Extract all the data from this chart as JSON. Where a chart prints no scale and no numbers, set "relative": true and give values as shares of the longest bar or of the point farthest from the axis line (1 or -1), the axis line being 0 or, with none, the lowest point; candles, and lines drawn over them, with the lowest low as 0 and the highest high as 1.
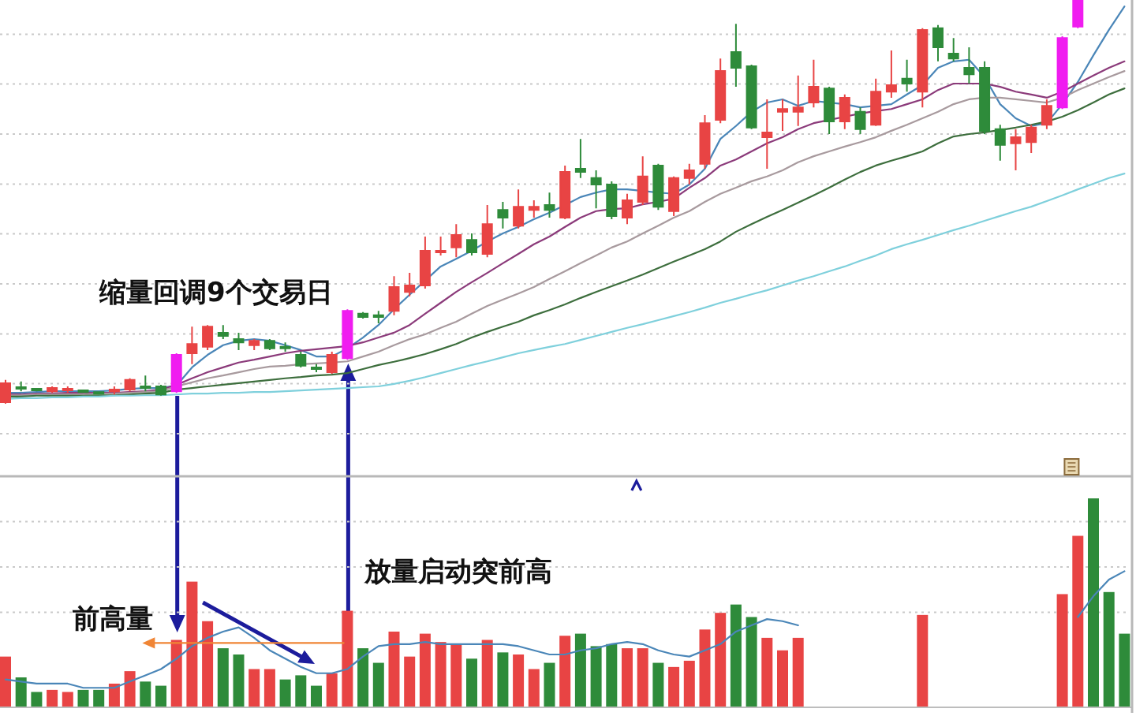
{
  "chart_data": [
    {
      "type": "candlestick",
      "relative": true,
      "grid": "y",
      "categories": [
        null,
        null,
        null,
        null,
        null,
        null,
        null,
        null,
        null,
        null,
        null,
        null,
        null,
        null,
        null,
        null,
        null,
        null,
        null,
        null,
        null,
        null,
        null,
        null,
        null,
        null,
        null,
        null,
        null,
        null,
        null,
        null,
        null,
        null,
        null,
        null,
        null,
        null,
        null,
        null,
        null,
        null,
        null,
        null,
        null,
        null,
        null,
        null,
        null,
        null,
        null,
        null,
        null,
        null,
        null,
        null,
        null,
        null,
        null,
        null,
        null,
        null,
        null,
        null,
        null,
        null,
        null,
        null,
        null,
        null,
        null,
        null,
        null
      ],
      "ohlc": [
        [
          0.004,
          0.059,
          0,
          0.051
        ],
        [
          0.041,
          0.055,
          0.031,
          0.037
        ],
        [
          0.037,
          0.039,
          0.031,
          0.033
        ],
        [
          0.031,
          0.043,
          0.027,
          0.039
        ],
        [
          0.035,
          0.043,
          0.027,
          0.037
        ],
        [
          0.033,
          0.035,
          0.027,
          0.029
        ],
        [
          0.029,
          0.031,
          0.023,
          0.025
        ],
        [
          0.031,
          0.043,
          0.023,
          0.035
        ],
        [
          0.035,
          0.063,
          0.031,
          0.059
        ],
        [
          0.043,
          0.07,
          0.031,
          0.039
        ],
        [
          0.043,
          0.047,
          0.02,
          0.023
        ],
        [
          0.031,
          0.125,
          0.027,
          0.121
        ],
        [
          0.125,
          0.191,
          0.098,
          0.148
        ],
        [
          0.141,
          0.195,
          0.133,
          0.191
        ],
        [
          0.176,
          0.195,
          0.16,
          0.168
        ],
        [
          0.16,
          0.176,
          0.133,
          0.152
        ],
        [
          0.145,
          0.16,
          0.133,
          0.156
        ],
        [
          0.156,
          0.16,
          0.133,
          0.137
        ],
        [
          0.141,
          0.152,
          0.129,
          0.137
        ],
        [
          0.121,
          0.129,
          0.09,
          0.094
        ],
        [
          0.09,
          0.098,
          0.078,
          0.086
        ],
        [
          0.078,
          0.129,
          0.074,
          0.121
        ],
        [
          0.113,
          0.234,
          0.109,
          0.23
        ],
        [
          0.223,
          0.227,
          0.211,
          0.215
        ],
        [
          0.219,
          0.23,
          0.199,
          0.215
        ],
        [
          0.23,
          0.316,
          0.219,
          0.289
        ],
        [
          0.277,
          0.324,
          0.266,
          0.293
        ],
        [
          0.293,
          0.414,
          0.285,
          0.379
        ],
        [
          0.375,
          0.414,
          0.367,
          0.379
        ],
        [
          0.387,
          0.445,
          0.363,
          0.418
        ],
        [
          0.406,
          0.422,
          0.367,
          0.375
        ],
        [
          0.371,
          0.492,
          0.363,
          0.445
        ],
        [
          0.48,
          0.5,
          0.434,
          0.461
        ],
        [
          0.441,
          0.531,
          0.434,
          0.488
        ],
        [
          0.48,
          0.504,
          0.461,
          0.488
        ],
        [
          0.492,
          0.523,
          0.461,
          0.48
        ],
        [
          0.461,
          0.59,
          0.457,
          0.574
        ],
        [
          0.582,
          0.656,
          0.559,
          0.574
        ],
        [
          0.559,
          0.578,
          0.484,
          0.543
        ],
        [
          0.543,
          0.551,
          0.457,
          0.465
        ],
        [
          0.461,
          0.52,
          0.445,
          0.504
        ],
        [
          0.5,
          0.613,
          0.492,
          0.563
        ],
        [
          0.59,
          0.594,
          0.48,
          0.488
        ],
        [
          0.477,
          0.563,
          0.465,
          0.559
        ],
        [
          0.559,
          0.594,
          0.543,
          0.578
        ],
        [
          0.594,
          0.715,
          0.582,
          0.695
        ],
        [
          0.703,
          0.855,
          0.695,
          0.824
        ],
        [
          0.871,
          0.941,
          0.785,
          0.832
        ],
        [
          0.836,
          0.84,
          0.68,
          0.684
        ],
        [
          0.66,
          0.754,
          0.582,
          0.672
        ],
        [
          0.723,
          0.754,
          0.676,
          0.73
        ],
        [
          0.723,
          0.813,
          0.688,
          0.734
        ],
        [
          0.746,
          0.852,
          0.734,
          0.785
        ],
        [
          0.781,
          0.785,
          0.668,
          0.699
        ],
        [
          0.699,
          0.766,
          0.68,
          0.758
        ],
        [
          0.723,
          0.734,
          0.668,
          0.68
        ],
        [
          0.691,
          0.805,
          0.688,
          0.773
        ],
        [
          0.773,
          0.875,
          0.758,
          0.789
        ],
        [
          0.805,
          0.852,
          0.773,
          0.793
        ],
        [
          0.773,
          0.93,
          0.734,
          0.926
        ],
        [
          0.93,
          0.938,
          0.848,
          0.883
        ],
        [
          0.867,
          0.906,
          0.848,
          0.855
        ],
        [
          0.832,
          0.883,
          0.793,
          0.816
        ],
        [
          0.832,
          0.848,
          0.668,
          0.676
        ],
        [
          0.68,
          0.691,
          0.602,
          0.641
        ],
        [
          0.645,
          0.68,
          0.578,
          0.66
        ],
        [
          0.648,
          0.691,
          0.621,
          0.684
        ],
        [
          0.691,
          0.754,
          0.68,
          0.738
        ],
        [
          0.734,
          0.91,
          0.73,
          0.906
        ],
        [
          0.934,
          1,
          0.93,
          1
        ],
        null,
        null,
        null
      ],
      "colors": [
        "#e84444",
        "#2e8b3a",
        "#2e8b3a",
        "#e84444",
        "#e84444",
        "#2e8b3a",
        "#2e8b3a",
        "#e84444",
        "#e84444",
        "#2e8b3a",
        "#2e8b3a",
        "#f01cf0",
        "#e84444",
        "#e84444",
        "#2e8b3a",
        "#2e8b3a",
        "#e84444",
        "#2e8b3a",
        "#2e8b3a",
        "#2e8b3a",
        "#2e8b3a",
        "#e84444",
        "#f01cf0",
        "#2e8b3a",
        "#2e8b3a",
        "#e84444",
        "#e84444",
        "#e84444",
        "#e84444",
        "#e84444",
        "#2e8b3a",
        "#e84444",
        "#2e8b3a",
        "#e84444",
        "#e84444",
        "#2e8b3a",
        "#e84444",
        "#2e8b3a",
        "#2e8b3a",
        "#2e8b3a",
        "#e84444",
        "#e84444",
        "#2e8b3a",
        "#e84444",
        "#e84444",
        "#e84444",
        "#e84444",
        "#2e8b3a",
        "#2e8b3a",
        "#e84444",
        "#e84444",
        "#e84444",
        "#e84444",
        "#2e8b3a",
        "#e84444",
        "#2e8b3a",
        "#e84444",
        "#e84444",
        "#2e8b3a",
        "#e84444",
        "#2e8b3a",
        "#2e8b3a",
        "#2e8b3a",
        "#2e8b3a",
        "#2e8b3a",
        "#e84444",
        "#e84444",
        "#e84444",
        "#f01cf0",
        "#f01cf0",
        null,
        null,
        null
      ],
      "series": [
        {
          "type": "line",
          "color": "#4a86b8",
          "values": [
            0.027,
            0.027,
            0.029,
            0.031,
            0.031,
            0.031,
            0.031,
            0.033,
            0.037,
            0.039,
            0.039,
            0.045,
            0.09,
            0.121,
            0.145,
            0.156,
            0.16,
            0.156,
            0.145,
            0.133,
            0.117,
            0.117,
            0.137,
            0.164,
            0.195,
            0.234,
            0.27,
            0.305,
            0.34,
            0.359,
            0.379,
            0.402,
            0.422,
            0.438,
            0.457,
            0.473,
            0.492,
            0.512,
            0.523,
            0.531,
            0.531,
            0.527,
            0.523,
            0.52,
            0.543,
            0.582,
            0.656,
            0.688,
            0.723,
            0.746,
            0.754,
            0.738,
            0.75,
            0.746,
            0.742,
            0.734,
            0.738,
            0.742,
            0.766,
            0.789,
            0.832,
            0.848,
            0.852,
            0.809,
            0.742,
            0.707,
            0.688,
            0.695,
            0.742,
            0.797,
            0.863,
            0.926,
            0.984
          ]
        },
        {
          "type": "line",
          "color": "#8b3a7a",
          "values": [
            0.023,
            0.023,
            0.025,
            0.025,
            0.027,
            0.027,
            0.027,
            0.027,
            0.029,
            0.031,
            0.035,
            0.047,
            0.063,
            0.078,
            0.09,
            0.102,
            0.109,
            0.117,
            0.125,
            0.131,
            0.135,
            0.139,
            0.143,
            0.152,
            0.164,
            0.176,
            0.195,
            0.223,
            0.25,
            0.277,
            0.301,
            0.324,
            0.348,
            0.371,
            0.395,
            0.414,
            0.438,
            0.461,
            0.477,
            0.482,
            0.484,
            0.494,
            0.5,
            0.508,
            0.535,
            0.559,
            0.59,
            0.605,
            0.625,
            0.645,
            0.66,
            0.68,
            0.695,
            0.703,
            0.711,
            0.719,
            0.725,
            0.73,
            0.742,
            0.754,
            0.777,
            0.793,
            0.793,
            0.793,
            0.785,
            0.773,
            0.766,
            0.758,
            0.773,
            0.793,
            0.813,
            0.832,
            0.848
          ]
        },
        {
          "type": "line",
          "color": "#a89a9e",
          "values": [
            0.021,
            0.021,
            0.023,
            0.023,
            0.023,
            0.023,
            0.025,
            0.025,
            0.027,
            0.029,
            0.031,
            0.043,
            0.053,
            0.063,
            0.07,
            0.078,
            0.086,
            0.092,
            0.094,
            0.098,
            0.1,
            0.102,
            0.105,
            0.117,
            0.129,
            0.145,
            0.16,
            0.172,
            0.188,
            0.203,
            0.223,
            0.242,
            0.258,
            0.273,
            0.289,
            0.309,
            0.328,
            0.348,
            0.367,
            0.387,
            0.402,
            0.422,
            0.441,
            0.461,
            0.477,
            0.5,
            0.52,
            0.535,
            0.551,
            0.563,
            0.578,
            0.598,
            0.613,
            0.625,
            0.637,
            0.648,
            0.66,
            0.676,
            0.691,
            0.707,
            0.723,
            0.742,
            0.754,
            0.758,
            0.758,
            0.754,
            0.75,
            0.746,
            0.758,
            0.777,
            0.793,
            0.809,
            0.824
          ]
        },
        {
          "type": "line",
          "color": "#3d6e3d",
          "values": [
            0.018,
            0.018,
            0.02,
            0.02,
            0.02,
            0.02,
            0.021,
            0.021,
            0.023,
            0.025,
            0.027,
            0.035,
            0.039,
            0.043,
            0.047,
            0.051,
            0.055,
            0.059,
            0.063,
            0.066,
            0.07,
            0.072,
            0.076,
            0.086,
            0.096,
            0.104,
            0.113,
            0.123,
            0.135,
            0.148,
            0.164,
            0.178,
            0.191,
            0.203,
            0.219,
            0.232,
            0.246,
            0.262,
            0.277,
            0.291,
            0.305,
            0.32,
            0.336,
            0.352,
            0.367,
            0.383,
            0.402,
            0.426,
            0.445,
            0.463,
            0.48,
            0.498,
            0.516,
            0.535,
            0.555,
            0.574,
            0.59,
            0.602,
            0.613,
            0.625,
            0.645,
            0.662,
            0.668,
            0.672,
            0.678,
            0.684,
            0.691,
            0.699,
            0.711,
            0.727,
            0.746,
            0.766,
            0.781
          ]
        },
        {
          "type": "line",
          "color": "#7fd0dc",
          "values": [
            0.012,
            0.014,
            0.014,
            0.016,
            0.016,
            0.018,
            0.018,
            0.02,
            0.02,
            0.021,
            0.021,
            0.023,
            0.025,
            0.025,
            0.027,
            0.027,
            0.029,
            0.029,
            0.031,
            0.033,
            0.035,
            0.037,
            0.039,
            0.041,
            0.043,
            0.049,
            0.057,
            0.066,
            0.076,
            0.086,
            0.096,
            0.105,
            0.115,
            0.125,
            0.133,
            0.141,
            0.148,
            0.158,
            0.168,
            0.178,
            0.188,
            0.197,
            0.207,
            0.217,
            0.227,
            0.238,
            0.25,
            0.26,
            0.271,
            0.281,
            0.293,
            0.305,
            0.316,
            0.328,
            0.34,
            0.354,
            0.367,
            0.383,
            0.395,
            0.406,
            0.418,
            0.43,
            0.441,
            0.453,
            0.465,
            0.477,
            0.488,
            0.502,
            0.516,
            0.531,
            0.545,
            0.559,
            0.57
          ]
        }
      ],
      "annotations": [
        "缩量回调9个交易日"
      ]
    },
    {
      "type": "bar",
      "relative": true,
      "grid": "y",
      "categories": [
        null,
        null,
        null,
        null,
        null,
        null,
        null,
        null,
        null,
        null,
        null,
        null,
        null,
        null,
        null,
        null,
        null,
        null,
        null,
        null,
        null,
        null,
        null,
        null,
        null,
        null,
        null,
        null,
        null,
        null,
        null,
        null,
        null,
        null,
        null,
        null,
        null,
        null,
        null,
        null,
        null,
        null,
        null,
        null,
        null,
        null,
        null,
        null,
        null,
        null,
        null,
        null,
        null,
        null,
        null,
        null,
        null,
        null,
        null,
        null,
        null,
        null,
        null,
        null,
        null,
        null,
        null,
        null,
        null,
        null,
        null,
        null,
        null
      ],
      "values": [
        0.24,
        0.14,
        0.07,
        0.08,
        0.07,
        0.08,
        0.08,
        0.11,
        0.17,
        0.12,
        0.1,
        0.32,
        0.6,
        0.41,
        0.28,
        0.25,
        0.18,
        0.18,
        0.13,
        0.15,
        0.1,
        0.16,
        0.46,
        0.28,
        0.21,
        0.36,
        0.24,
        0.35,
        0.31,
        0.3,
        0.23,
        0.32,
        0.26,
        0.25,
        0.18,
        0.21,
        0.34,
        0.35,
        0.29,
        0.3,
        0.28,
        0.28,
        0.21,
        0.19,
        0.22,
        0.37,
        0.45,
        0.49,
        0.43,
        0.33,
        0.27,
        0.33,
        null,
        null,
        null,
        null,
        null,
        null,
        null,
        0.44,
        null,
        null,
        null,
        null,
        null,
        null,
        null,
        null,
        0.54,
        0.82,
        1,
        0.55,
        0.35
      ],
      "colors": [
        "#e84444",
        "#2e8b3a",
        "#2e8b3a",
        "#e84444",
        "#e84444",
        "#2e8b3a",
        "#2e8b3a",
        "#e84444",
        "#e84444",
        "#2e8b3a",
        "#2e8b3a",
        "#e84444",
        "#e84444",
        "#e84444",
        "#2e8b3a",
        "#2e8b3a",
        "#e84444",
        "#e84444",
        "#2e8b3a",
        "#2e8b3a",
        "#2e8b3a",
        "#e84444",
        "#e84444",
        "#2e8b3a",
        "#2e8b3a",
        "#e84444",
        "#e84444",
        "#e84444",
        "#e84444",
        "#e84444",
        "#2e8b3a",
        "#e84444",
        "#2e8b3a",
        "#e84444",
        "#e84444",
        "#2e8b3a",
        "#e84444",
        "#2e8b3a",
        "#2e8b3a",
        "#2e8b3a",
        "#e84444",
        "#e84444",
        "#2e8b3a",
        "#e84444",
        "#e84444",
        "#e84444",
        "#e84444",
        "#2e8b3a",
        "#2e8b3a",
        "#e84444",
        "#e84444",
        "#e84444",
        null,
        null,
        null,
        null,
        null,
        null,
        null,
        "#e84444",
        null,
        null,
        null,
        null,
        null,
        null,
        null,
        null,
        "#e84444",
        "#e84444",
        "#2e8b3a",
        "#2e8b3a",
        "#2e8b3a"
      ],
      "series": [
        {
          "type": "line",
          "color": "#4a86b8",
          "values": [
            0.13,
            0.12,
            0.11,
            0.11,
            0.11,
            0.09,
            0.09,
            0.09,
            0.12,
            0.15,
            0.18,
            0.23,
            0.29,
            0.33,
            0.36,
            0.38,
            0.33,
            0.27,
            0.23,
            0.19,
            0.16,
            0.16,
            0.18,
            0.24,
            0.29,
            0.3,
            0.3,
            0.31,
            0.3,
            0.3,
            0.3,
            0.3,
            0.3,
            0.29,
            0.27,
            0.25,
            0.25,
            0.27,
            0.28,
            0.3,
            0.31,
            0.3,
            0.27,
            0.25,
            0.24,
            0.27,
            0.3,
            0.36,
            0.39,
            0.42,
            0.41,
            0.39,
            null,
            null,
            null,
            null,
            null,
            null,
            null,
            null,
            null,
            null,
            null,
            null,
            null,
            null,
            null,
            null,
            null,
            0.43,
            0.53,
            0.61,
            0.65
          ]
        }
      ],
      "annotations": [
        "前高量",
        "放量启动突前高"
      ]
    }
  ]
}
